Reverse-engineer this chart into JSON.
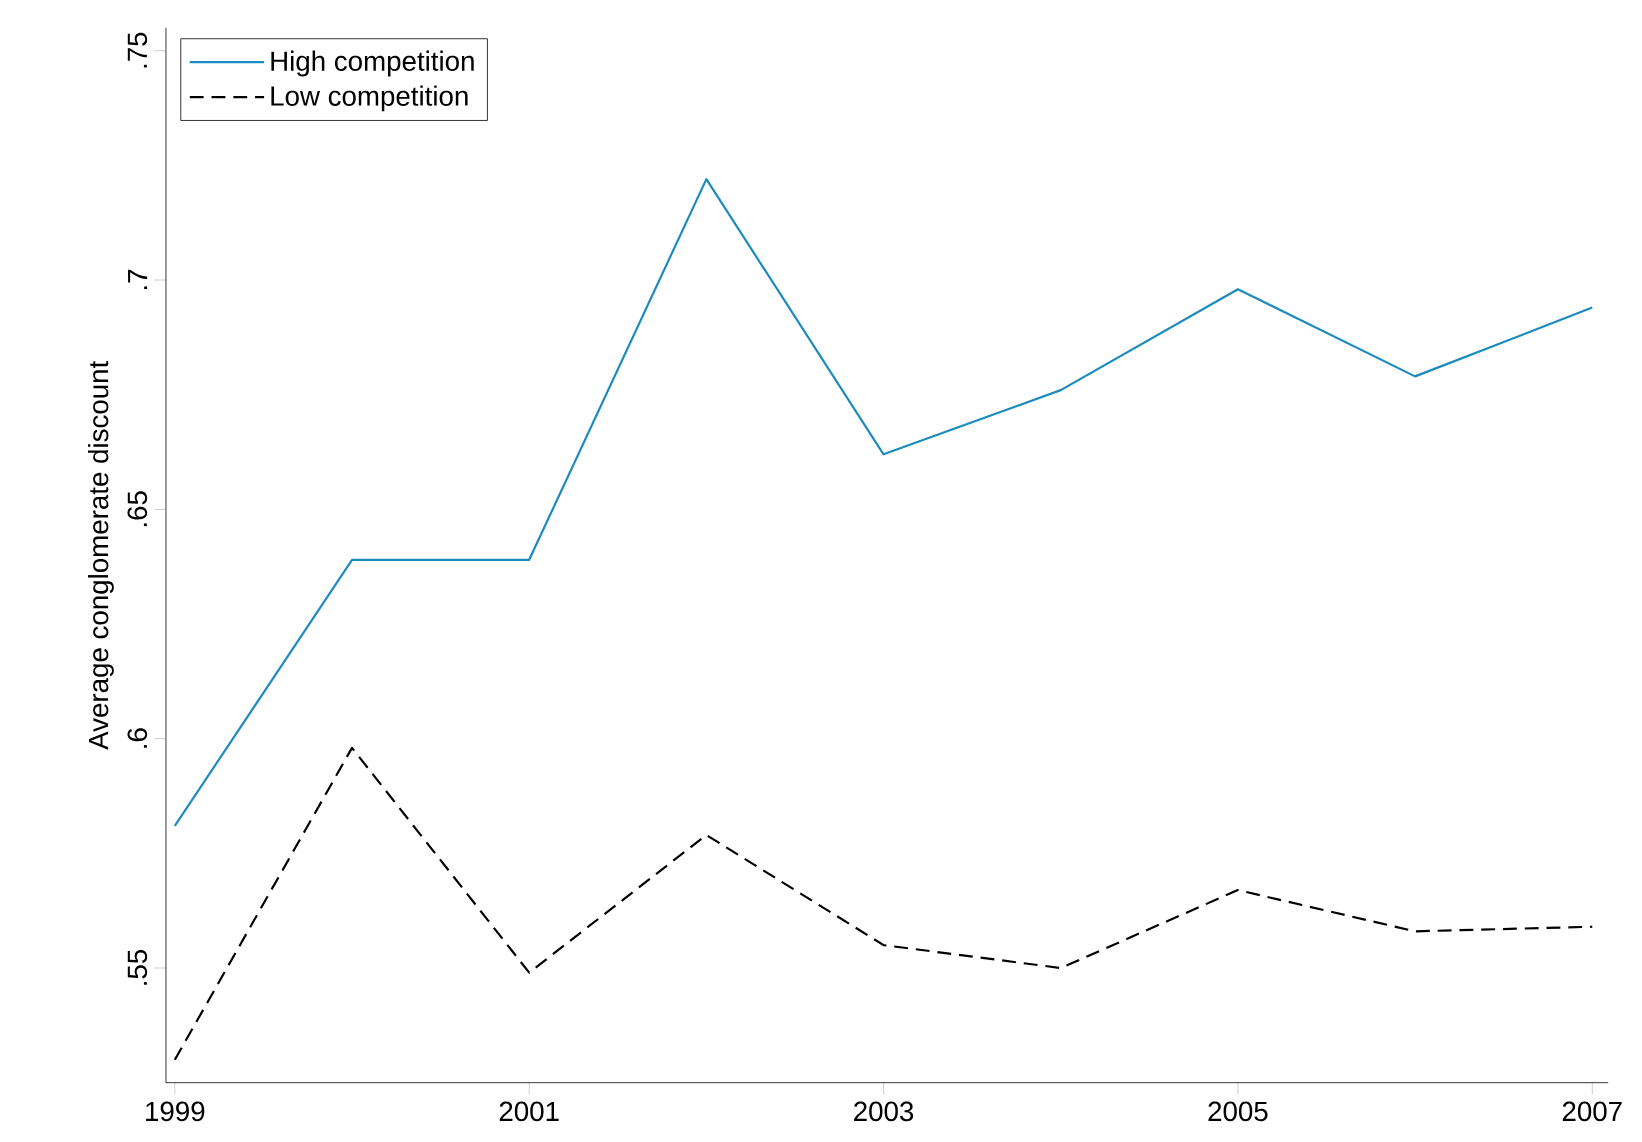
{
  "chart_data": {
    "type": "line",
    "ylabel": "Average conglomerate discount",
    "x": [
      1999,
      2000,
      2001,
      2002,
      2003,
      2004,
      2005,
      2006,
      2007
    ],
    "series": [
      {
        "name": "High competition",
        "color": "#1a8bbf",
        "line_style": "solid",
        "values": [
          0.581,
          0.639,
          0.639,
          0.722,
          0.662,
          0.676,
          0.698,
          0.679,
          0.694
        ]
      },
      {
        "name": "Low competition",
        "color": "#000000",
        "line_style": "dashed",
        "values": [
          0.53,
          0.598,
          0.549,
          0.579,
          0.555,
          0.55,
          0.567,
          0.558,
          0.559
        ]
      }
    ],
    "xlim": [
      1998.95,
      2007.09
    ],
    "ylim": [
      0.525,
      0.755
    ],
    "xticks": [
      1999,
      2001,
      2003,
      2005,
      2007
    ],
    "yticks": [
      {
        "value": 0.55,
        "label": ".55"
      },
      {
        "value": 0.6,
        "label": ".6"
      },
      {
        "value": 0.65,
        "label": ".65"
      },
      {
        "value": 0.7,
        "label": ".7"
      },
      {
        "value": 0.75,
        "label": ".75"
      }
    ],
    "legend": "top left"
  }
}
